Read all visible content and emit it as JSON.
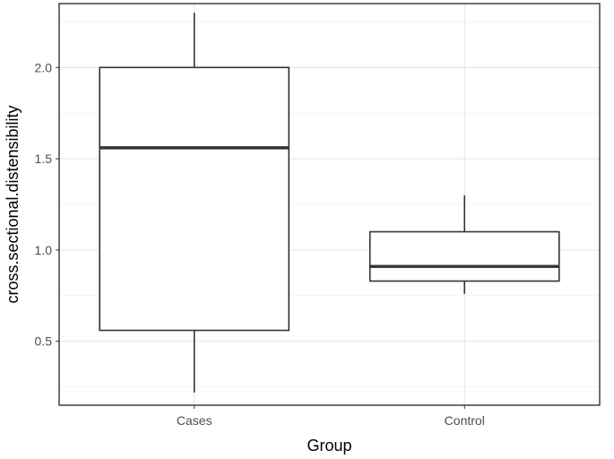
{
  "chart_data": {
    "type": "boxplot",
    "title": "",
    "xlabel": "Group",
    "ylabel": "cross.sectional.distensibility",
    "categories": [
      "Cases",
      "Control"
    ],
    "ylim": [
      0.15,
      2.35
    ],
    "yticks": [
      0.5,
      1.0,
      1.5,
      2.0
    ],
    "yticklabels": [
      "0.5",
      "1.0",
      "1.5",
      "2.0"
    ],
    "grid": true,
    "theme": "bw",
    "boxes": [
      {
        "category": "Cases",
        "min": 0.22,
        "q1": 0.56,
        "median": 1.56,
        "q3": 2.0,
        "max": 2.3
      },
      {
        "category": "Control",
        "min": 0.76,
        "q1": 0.83,
        "median": 0.91,
        "q3": 1.1,
        "max": 1.3
      }
    ]
  }
}
